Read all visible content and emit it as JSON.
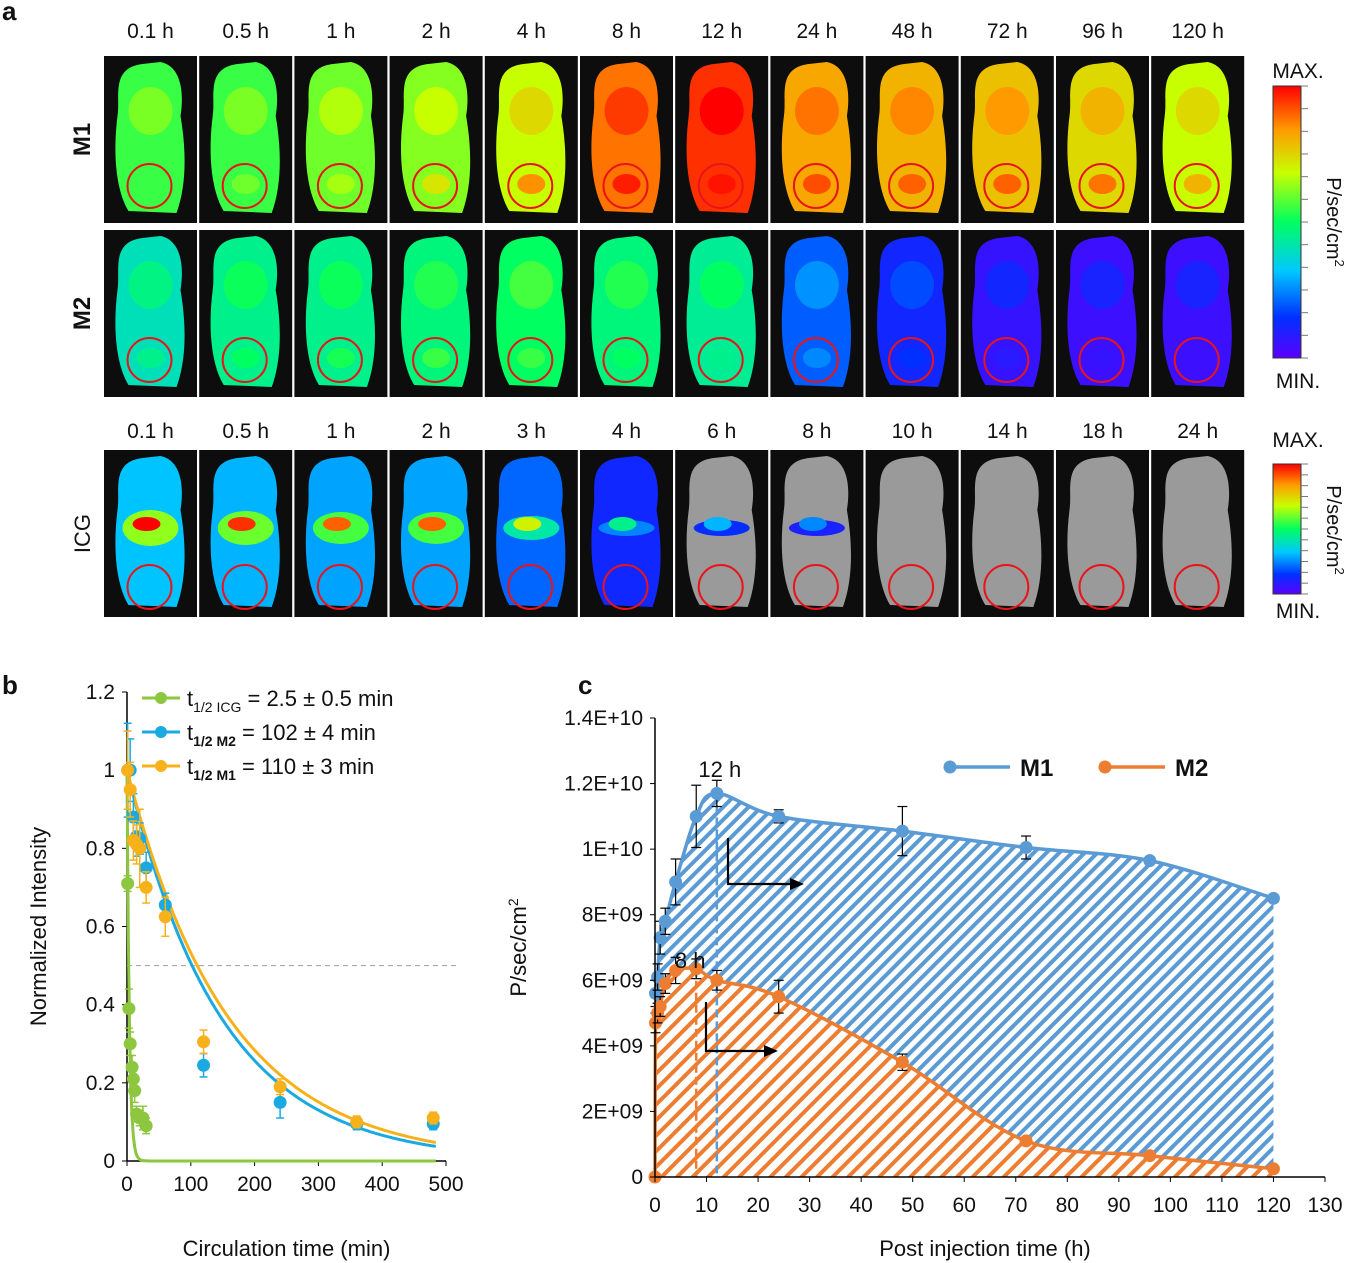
{
  "panel_a": {
    "label": "a",
    "rows_top": [
      {
        "name": "M1",
        "intensities": [
          0.55,
          0.55,
          0.6,
          0.62,
          0.68,
          0.88,
          0.95,
          0.82,
          0.8,
          0.78,
          0.74,
          0.68
        ],
        "tumor": [
          0.55,
          0.6,
          0.65,
          0.72,
          0.85,
          0.97,
          0.98,
          0.92,
          0.9,
          0.9,
          0.88,
          0.8
        ]
      },
      {
        "name": "M2",
        "intensities": [
          0.4,
          0.45,
          0.45,
          0.47,
          0.5,
          0.47,
          0.44,
          0.2,
          0.12,
          0.06,
          0.05,
          0.05
        ],
        "tumor": [
          0.45,
          0.5,
          0.52,
          0.55,
          0.55,
          0.5,
          0.45,
          0.25,
          0.15,
          0.08,
          0.06,
          0.05
        ]
      }
    ],
    "times_top": [
      "0.1 h",
      "0.5 h",
      "1 h",
      "2 h",
      "4 h",
      "8 h",
      "12 h",
      "24 h",
      "48 h",
      "72 h",
      "96 h",
      "120 h"
    ],
    "row_bottom": {
      "name": "ICG",
      "intensities": [
        0.9,
        0.85,
        0.8,
        0.8,
        0.6,
        0.35,
        0.2,
        0.15,
        0.1,
        0.08,
        0.06,
        0.05
      ]
    },
    "times_bottom": [
      "0.1 h",
      "0.5 h",
      "1 h",
      "2 h",
      "3 h",
      "4 h",
      "6 h",
      "8 h",
      "10 h",
      "14 h",
      "18 h",
      "24 h"
    ],
    "colorbar_max": "MAX.",
    "colorbar_min": "MIN.",
    "colorbar_unit": "P/sec/cm",
    "colorbar_sup": "2",
    "ring_color": "#e8141a"
  },
  "chart_data": [
    {
      "panel": "b",
      "type": "scatter",
      "xlabel": "Circulation time (min)",
      "ylabel": "Normalized Intensity",
      "xlim": [
        0,
        500
      ],
      "ylim": [
        0,
        1.2
      ],
      "xticks": [
        0,
        100,
        200,
        300,
        400,
        500
      ],
      "yticks": [
        0,
        0.2,
        0.4,
        0.6,
        0.8,
        1,
        1.2
      ],
      "ytick_labels": [
        "0",
        "0.2",
        "0.4",
        "0.6",
        "0.8",
        "1",
        "1.2"
      ],
      "half_line": 0.5,
      "legend": [
        {
          "base": "t",
          "sub": "1/2 ICG",
          "sub_bold": false,
          "rest": " = 2.5 ± 0.5 min",
          "color": "#8dc63f"
        },
        {
          "base": "t",
          "sub": "1/2 M2",
          "sub_bold": true,
          "rest": " = 102 ± 4  min",
          "color": "#1ba9e1"
        },
        {
          "base": "t",
          "sub": "1/2 M1",
          "sub_bold": true,
          "rest": " = 110 ± 3  min",
          "color": "#f7b21b"
        }
      ],
      "series": [
        {
          "name": "ICG",
          "color": "#8dc63f",
          "half_life_min": 2.5,
          "x": [
            1,
            3,
            5,
            8,
            10,
            12,
            15,
            20,
            25,
            30
          ],
          "y": [
            0.71,
            0.39,
            0.3,
            0.24,
            0.21,
            0.18,
            0.12,
            0.11,
            0.11,
            0.09
          ],
          "err": [
            0.02,
            0.05,
            0.03,
            0.03,
            0.03,
            0.03,
            0.02,
            0.02,
            0.03,
            0.02
          ]
        },
        {
          "name": "M2",
          "color": "#1ba9e1",
          "half_life_min": 102,
          "x": [
            1,
            5,
            10,
            15,
            20,
            30,
            60,
            120,
            240,
            360,
            480
          ],
          "y": [
            1.0,
            1.0,
            0.88,
            0.83,
            0.825,
            0.75,
            0.655,
            0.245,
            0.15,
            0.095,
            0.095
          ],
          "err": [
            0.12,
            0.08,
            0.06,
            0.05,
            0.04,
            0.04,
            0.03,
            0.03,
            0.04,
            0.015,
            0.015
          ]
        },
        {
          "name": "M1",
          "color": "#f7b21b",
          "half_life_min": 110,
          "x": [
            1,
            5,
            10,
            15,
            20,
            30,
            60,
            120,
            240,
            360,
            480
          ],
          "y": [
            1.0,
            0.95,
            0.82,
            0.81,
            0.8,
            0.7,
            0.625,
            0.305,
            0.19,
            0.1,
            0.11
          ],
          "err": [
            0.1,
            0.07,
            0.05,
            0.05,
            0.1,
            0.04,
            0.05,
            0.03,
            0.02,
            0.015,
            0.015
          ]
        }
      ]
    },
    {
      "panel": "c",
      "type": "area",
      "xlabel": "Post injection time (h)",
      "ylabel": "P/sec/cm",
      "ylabel_sup": "2",
      "xlim": [
        0,
        130
      ],
      "ylim": [
        0,
        14000000000
      ],
      "xticks": [
        0,
        10,
        20,
        30,
        40,
        50,
        60,
        70,
        80,
        90,
        100,
        110,
        120,
        130
      ],
      "yticks": [
        0,
        2000000000,
        4000000000,
        6000000000,
        8000000000,
        10000000000,
        12000000000,
        14000000000
      ],
      "ytick_labels": [
        "0",
        "2E+09",
        "4E+09",
        "6E+09",
        "8E+09",
        "1E+10",
        "1.2E+10",
        "1.4E+10"
      ],
      "annotations": [
        {
          "text": "12 h",
          "x": 12,
          "color": "#5b9bd5"
        },
        {
          "text": "8 h",
          "x": 8,
          "color": "#ed7d31"
        }
      ],
      "series": [
        {
          "name": "M1",
          "color": "#5b9bd5",
          "x": [
            0.1,
            0.5,
            1,
            2,
            4,
            8,
            12,
            24,
            48,
            72,
            96,
            120
          ],
          "y": [
            5600000000,
            6100000000,
            7300000000,
            7800000000,
            9000000000,
            11000000000,
            11700000000,
            11000000000,
            10550000000,
            10050000000,
            9650000000,
            8500000000
          ],
          "err": [
            400000000,
            400000000,
            500000000,
            400000000,
            700000000,
            950000000,
            400000000,
            200000000,
            750000000,
            350000000,
            0,
            0
          ]
        },
        {
          "name": "M2",
          "color": "#ed7d31",
          "x": [
            0,
            0.1,
            0.5,
            1,
            2,
            4,
            8,
            12,
            24,
            48,
            72,
            96,
            120
          ],
          "y": [
            0,
            4700000000,
            5000000000,
            5200000000,
            5900000000,
            6300000000,
            6350000000,
            6000000000,
            5500000000,
            3500000000,
            1100000000,
            650000000,
            250000000
          ],
          "err": [
            0,
            300000000,
            300000000,
            300000000,
            300000000,
            400000000,
            300000000,
            300000000,
            500000000,
            250000000,
            100000000,
            80000000,
            50000000
          ]
        }
      ]
    }
  ],
  "labels": {
    "b": "b",
    "c": "c"
  }
}
